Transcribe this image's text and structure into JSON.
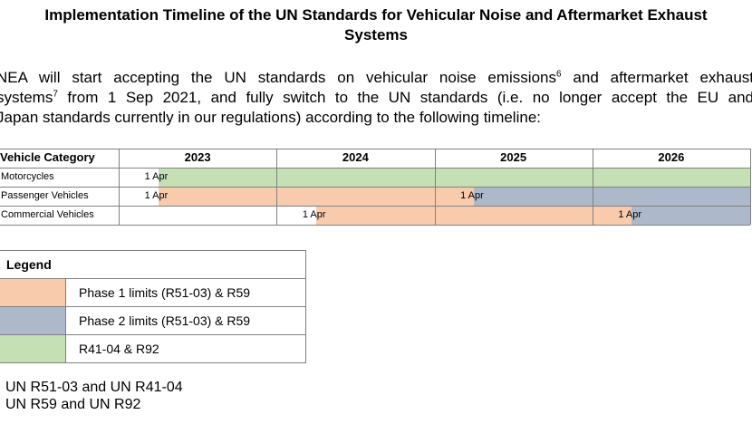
{
  "title": {
    "line1": "Implementation Timeline of the UN Standards for Vehicular Noise and Aftermarket Exhaust",
    "line2": "Systems"
  },
  "intro": {
    "line1_a": "NEA will start accepting the UN standards on vehicular noise emissions",
    "fn1": "6",
    "line1_b": " and aftermarket exhaust",
    "line2_a": "systems",
    "fn2": "7",
    "line2_b": " from 1 Sep 2021, and fully switch to the UN standards (i.e. no longer accept the EU and",
    "line3": "Japan standards currently in our regulations) according to the following timeline:"
  },
  "timeline": {
    "header_category": "Vehicle Category",
    "years": [
      "2023",
      "2024",
      "2025",
      "2026"
    ],
    "rows": [
      {
        "category": "Motorcycles",
        "dates": [
          {
            "label": "1 Apr",
            "year": 2023,
            "month": 4
          }
        ],
        "bars": [
          {
            "phase": "r41",
            "start": 2023.25,
            "end": 2027
          }
        ]
      },
      {
        "category": "Passenger Vehicles",
        "dates": [
          {
            "label": "1 Apr",
            "year": 2023,
            "month": 4
          },
          {
            "label": "1 Apr",
            "year": 2025,
            "month": 4
          }
        ],
        "bars": [
          {
            "phase": "phase1",
            "start": 2023.25,
            "end": 2025.25
          },
          {
            "phase": "phase2",
            "start": 2025.25,
            "end": 2027
          }
        ]
      },
      {
        "category": "Commercial Vehicles",
        "dates": [
          {
            "label": "1 Apr",
            "year": 2024,
            "month": 4
          },
          {
            "label": "1 Apr",
            "year": 2026,
            "month": 4
          }
        ],
        "bars": [
          {
            "phase": "phase1",
            "start": 2024.25,
            "end": 2026.25
          },
          {
            "phase": "phase2",
            "start": 2026.25,
            "end": 2027
          }
        ]
      }
    ]
  },
  "legend": {
    "title": "Legend",
    "items": [
      {
        "key": "phase1",
        "label": "Phase 1 limits (R51-03) & R59",
        "color": "#F8CBAD"
      },
      {
        "key": "phase2",
        "label": "Phase 2 limits (R51-03) & R59",
        "color": "#ADB9CA"
      },
      {
        "key": "r41",
        "label": "R41-04 & R92",
        "color": "#C5E0B4"
      }
    ]
  },
  "footnotes": {
    "n6": "UN R51-03 and UN R41-04",
    "n7": "UN R59 and UN R92"
  }
}
